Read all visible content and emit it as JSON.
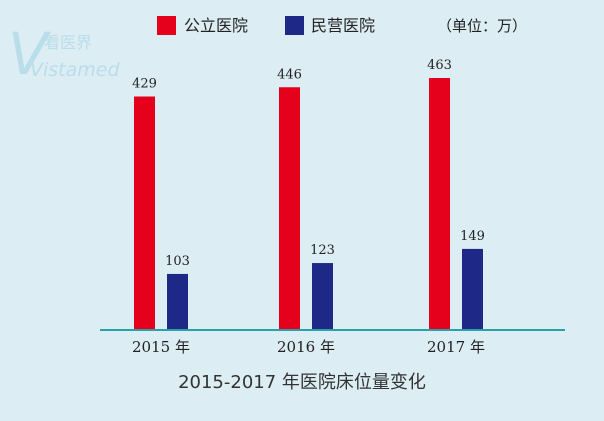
{
  "watermark": {
    "brand_cn": "看医界",
    "brand_en": "Vistamed",
    "logo_letter": "V"
  },
  "unit_label": "（单位：万）",
  "colors": {
    "public": "#e5001c",
    "private": "#1e2886",
    "axis": "#2aa0a8",
    "background": "#dcedf4"
  },
  "chart_data": {
    "type": "bar",
    "title": "2015-2017 年医院床位量变化",
    "categories": [
      "2015 年",
      "2016 年",
      "2017 年"
    ],
    "series": [
      {
        "name": "公立医院",
        "values": [
          429,
          446,
          463
        ]
      },
      {
        "name": "民营医院",
        "values": [
          103,
          123,
          149
        ]
      }
    ],
    "ylim": [
      0,
      500
    ],
    "grid": false,
    "legend": "top"
  }
}
